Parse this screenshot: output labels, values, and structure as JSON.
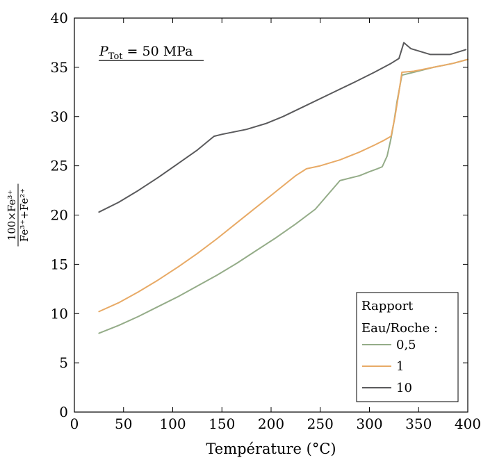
{
  "chart_data": {
    "type": "line",
    "title": "",
    "annotation": {
      "symbol": "P",
      "subscript": "Tot",
      "rest": " = 50 MPa"
    },
    "xlabel": "Température (°C)",
    "ylabel": {
      "numerator": "100×Fe³⁺",
      "denominator": "Fe³⁺+Fe²⁺"
    },
    "xlim": [
      0,
      400
    ],
    "ylim": [
      0,
      40
    ],
    "xticks": [
      0,
      50,
      100,
      150,
      200,
      250,
      300,
      350,
      400
    ],
    "yticks": [
      0,
      5,
      10,
      15,
      20,
      25,
      30,
      35,
      40
    ],
    "grid": false,
    "legend": {
      "position": "bottom-right",
      "title_line1": "Rapport",
      "title_line2": "Eau/Roche :"
    },
    "series": [
      {
        "name": "0,5",
        "color": "#94ac88",
        "x": [
          25,
          45,
          65,
          85,
          105,
          125,
          145,
          165,
          185,
          205,
          225,
          245,
          270,
          290,
          300,
          308,
          313,
          318,
          322,
          325,
          328,
          333,
          345,
          365,
          385,
          400
        ],
        "y": [
          8.0,
          8.8,
          9.7,
          10.7,
          11.7,
          12.8,
          13.9,
          15.1,
          16.4,
          17.7,
          19.1,
          20.6,
          23.5,
          24.0,
          24.4,
          24.7,
          24.9,
          26.0,
          27.8,
          29.5,
          31.5,
          34.2,
          34.5,
          35.0,
          35.4,
          35.8
        ]
      },
      {
        "name": "1",
        "color": "#e8aa66",
        "x": [
          25,
          45,
          65,
          85,
          105,
          125,
          145,
          165,
          185,
          205,
          225,
          236,
          250,
          270,
          290,
          305,
          315,
          322,
          326,
          330,
          333,
          345,
          365,
          385,
          400
        ],
        "y": [
          10.2,
          11.1,
          12.2,
          13.4,
          14.7,
          16.1,
          17.6,
          19.2,
          20.8,
          22.4,
          24.0,
          24.7,
          25.0,
          25.6,
          26.4,
          27.1,
          27.6,
          28.0,
          30.0,
          32.5,
          34.5,
          34.6,
          35.0,
          35.4,
          35.8
        ]
      },
      {
        "name": "10",
        "color": "#5a5a5c",
        "x": [
          25,
          45,
          65,
          85,
          105,
          125,
          142,
          150,
          175,
          195,
          212,
          235,
          260,
          285,
          305,
          322,
          330,
          335,
          342,
          362,
          382,
          398
        ],
        "y": [
          20.3,
          21.3,
          22.5,
          23.8,
          25.2,
          26.6,
          28.0,
          28.2,
          28.7,
          29.3,
          30.0,
          31.1,
          32.3,
          33.5,
          34.5,
          35.4,
          35.9,
          37.5,
          36.9,
          36.3,
          36.3,
          36.8
        ]
      }
    ]
  }
}
